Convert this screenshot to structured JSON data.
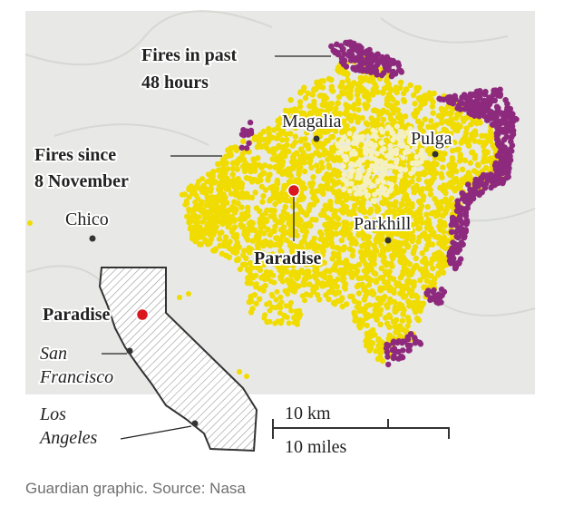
{
  "callouts": {
    "recent_fires": [
      "Fires in past",
      "48 hours"
    ],
    "fires_since": [
      "Fires since",
      "8 November"
    ]
  },
  "places": {
    "magalia": "Magalia",
    "pulga": "Pulga",
    "chico": "Chico",
    "parkhill": "Parkhill",
    "paradise": "Paradise"
  },
  "inset": {
    "paradise": "Paradise",
    "san_francisco": [
      "San",
      "Francisco"
    ],
    "los_angeles": [
      "Los",
      "Angeles"
    ]
  },
  "scale": {
    "km": "10 km",
    "miles": "10 miles"
  },
  "source": "Guardian graphic. Source: Nasa"
}
